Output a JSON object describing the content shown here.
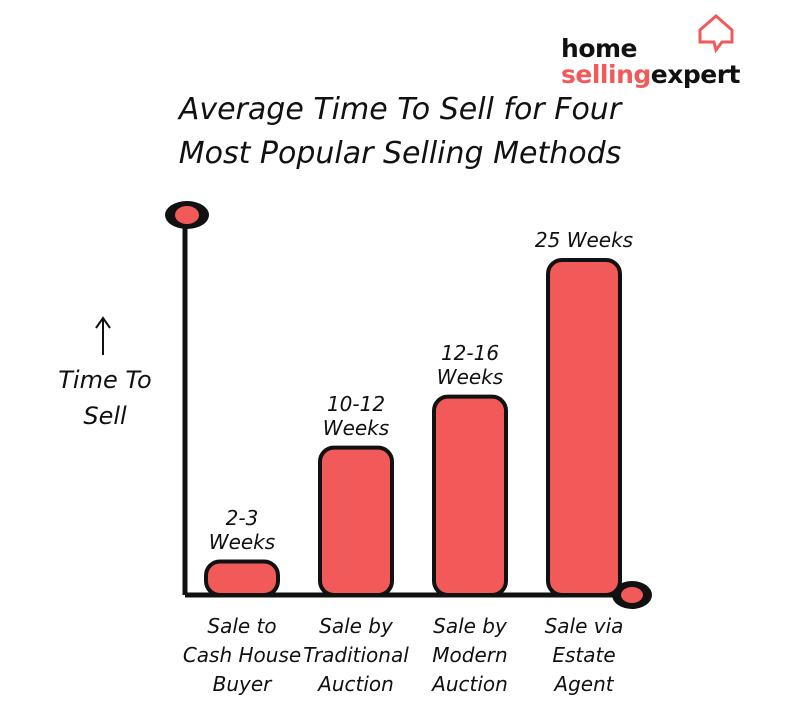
{
  "logo": [
    "home",
    "selling",
    "expert"
  ],
  "chart_data": {
    "type": "bar",
    "title": "Average Time To Sell for Four Most Popular Selling Methods",
    "y_label": "Time To Sell",
    "categories": [
      "Sale to Cash House Buyer",
      "Sale by Traditional Auction",
      "Sale by Modern Auction",
      "Sale via Estate Agent"
    ],
    "values": [
      2.5,
      11,
      14.8,
      25
    ],
    "value_labels": [
      "2-3 Weeks",
      "10-12 Weeks",
      "12-16 Weeks",
      "25 Weeks"
    ],
    "color": "#f25a5a"
  }
}
